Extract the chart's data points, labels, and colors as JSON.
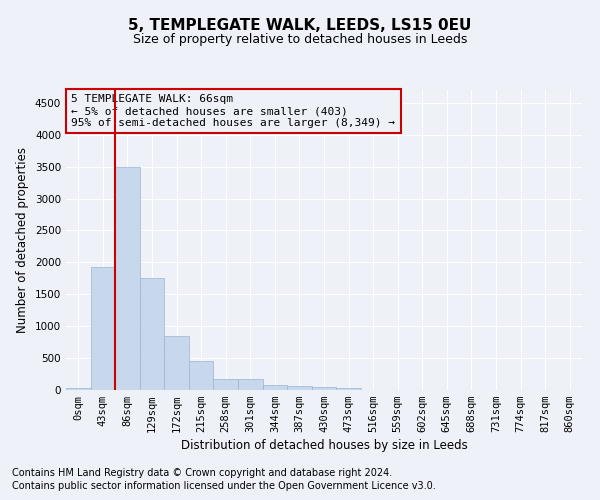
{
  "title": "5, TEMPLEGATE WALK, LEEDS, LS15 0EU",
  "subtitle": "Size of property relative to detached houses in Leeds",
  "xlabel": "Distribution of detached houses by size in Leeds",
  "ylabel": "Number of detached properties",
  "bar_color": "#c8d8ec",
  "bar_edge_color": "#9ab4d4",
  "vline_color": "#cc0000",
  "vline_x": 1.5,
  "annotation_title": "5 TEMPLEGATE WALK: 66sqm",
  "annotation_line1": "← 5% of detached houses are smaller (403)",
  "annotation_line2": "95% of semi-detached houses are larger (8,349) →",
  "annotation_box_color": "#cc0000",
  "xlabels": [
    "0sqm",
    "43sqm",
    "86sqm",
    "129sqm",
    "172sqm",
    "215sqm",
    "258sqm",
    "301sqm",
    "344sqm",
    "387sqm",
    "430sqm",
    "473sqm",
    "516sqm",
    "559sqm",
    "602sqm",
    "645sqm",
    "688sqm",
    "731sqm",
    "774sqm",
    "817sqm",
    "860sqm"
  ],
  "bar_values": [
    30,
    1920,
    3490,
    1760,
    840,
    450,
    170,
    170,
    85,
    55,
    40,
    25,
    0,
    0,
    0,
    0,
    0,
    0,
    0,
    0,
    0
  ],
  "ylim": [
    0,
    4700
  ],
  "yticks": [
    0,
    500,
    1000,
    1500,
    2000,
    2500,
    3000,
    3500,
    4000,
    4500
  ],
  "footnote1": "Contains HM Land Registry data © Crown copyright and database right 2024.",
  "footnote2": "Contains public sector information licensed under the Open Government Licence v3.0.",
  "bg_color": "#eef2f8",
  "grid_color": "#ffffff",
  "title_fontsize": 11,
  "subtitle_fontsize": 9,
  "axis_fontsize": 8.5,
  "tick_fontsize": 7.5,
  "footnote_fontsize": 7
}
